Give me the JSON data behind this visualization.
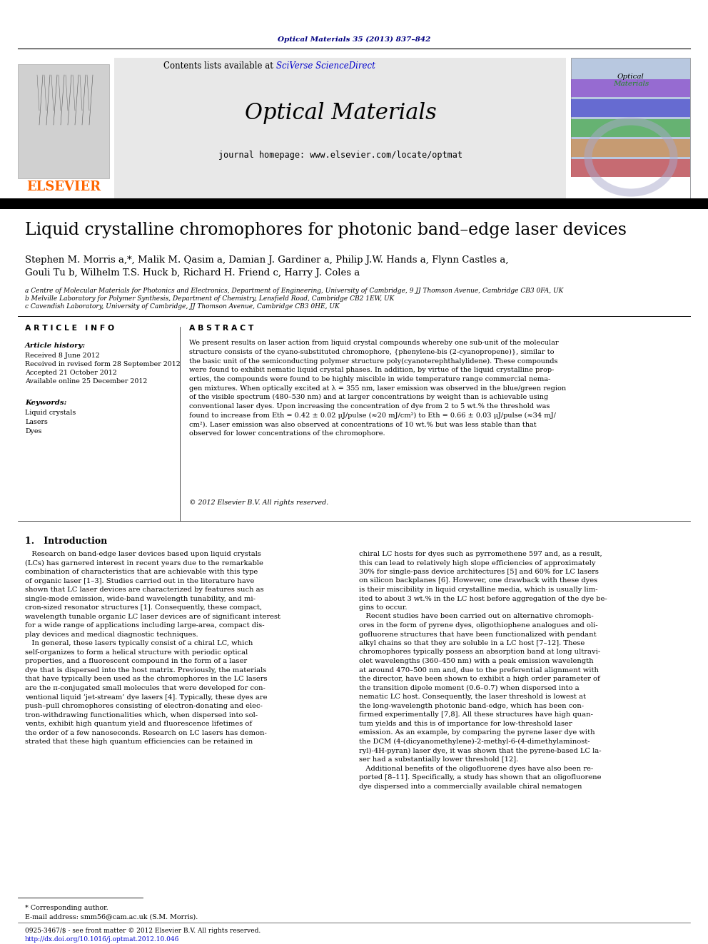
{
  "page_bg": "#ffffff",
  "header_journal_line": "Optical Materials 35 (2013) 837–842",
  "header_journal_color": "#000080",
  "journal_name": "Optical Materials",
  "journal_homepage": "journal homepage: www.elsevier.com/locate/optmat",
  "contents_text": "Contents lists available at ",
  "sciverse_text": "SciVerse ScienceDirect",
  "elsevier_color": "#FF6600",
  "elsevier_text": "ELSEVIER",
  "paper_title": "Liquid crystalline chromophores for photonic band–edge laser devices",
  "authors_line1": "Stephen M. Morris a,*, Malik M. Qasim a, Damian J. Gardiner a, Philip J.W. Hands a, Flynn Castles a,",
  "authors_line2": "Gouli Tu b, Wilhelm T.S. Huck b, Richard H. Friend c, Harry J. Coles a",
  "affil_a": "a Centre of Molecular Materials for Photonics and Electronics, Department of Engineering, University of Cambridge, 9 JJ Thomson Avenue, Cambridge CB3 0FA, UK",
  "affil_b": "b Melville Laboratory for Polymer Synthesis, Department of Chemistry, Lensfield Road, Cambridge CB2 1EW, UK",
  "affil_c": "c Cavendish Laboratory, University of Cambridge, JJ Thomson Avenue, Cambridge CB3 0HE, UK",
  "article_info_title": "A R T I C L E   I N F O",
  "abstract_title": "A B S T R A C T",
  "article_history_title": "Article history:",
  "received": "Received 8 June 2012",
  "revised": "Received in revised form 28 September 2012",
  "accepted": "Accepted 21 October 2012",
  "available": "Available online 25 December 2012",
  "keywords_title": "Keywords:",
  "keywords": "Liquid crystals\nLasers\nDyes",
  "abstract_text": "We present results on laser action from liquid crystal compounds whereby one sub-unit of the molecular\nstructure consists of the cyano-substituted chromophore, {phenylene-bis (2-cyanopropene)}, similar to\nthe basic unit of the semiconducting polymer structure poly(cyanoterephthalylidene). These compounds\nwere found to exhibit nematic liquid crystal phases. In addition, by virtue of the liquid crystalline prop-\nerties, the compounds were found to be highly miscible in wide temperature range commercial nema-\ngen mixtures. When optically excited at λ = 355 nm, laser emission was observed in the blue/green region\nof the visible spectrum (480–530 nm) and at larger concentrations by weight than is achievable using\nconventional laser dyes. Upon increasing the concentration of dye from 2 to 5 wt.% the threshold was\nfound to increase from Eth = 0.42 ± 0.02 μJ/pulse (≈20 mJ/cm²) to Eth = 0.66 ± 0.03 μJ/pulse (≈34 mJ/\ncm²). Laser emission was also observed at concentrations of 10 wt.% but was less stable than that\nobserved for lower concentrations of the chromophore.",
  "copyright": "© 2012 Elsevier B.V. All rights reserved.",
  "intro_title": "1.   Introduction",
  "intro_col1": "   Research on band-edge laser devices based upon liquid crystals\n(LCs) has garnered interest in recent years due to the remarkable\ncombination of characteristics that are achievable with this type\nof organic laser [1–3]. Studies carried out in the literature have\nshown that LC laser devices are characterized by features such as\nsingle-mode emission, wide-band wavelength tunability, and mi-\ncron-sized resonator structures [1]. Consequently, these compact,\nwavelength tunable organic LC laser devices are of significant interest\nfor a wide range of applications including large-area, compact dis-\nplay devices and medical diagnostic techniques.\n   In general, these lasers typically consist of a chiral LC, which\nself-organizes to form a helical structure with periodic optical\nproperties, and a fluorescent compound in the form of a laser\ndye that is dispersed into the host matrix. Previously, the materials\nthat have typically been used as the chromophores in the LC lasers\nare the π-conjugated small molecules that were developed for con-\nventional liquid ‘jet-stream’ dye lasers [4]. Typically, these dyes are\npush–pull chromophores consisting of electron-donating and elec-\ntron-withdrawing functionalities which, when dispersed into sol-\nvents, exhibit high quantum yield and fluorescence lifetimes of\nthe order of a few nanoseconds. Research on LC lasers has demon-\nstrated that these high quantum efficiencies can be retained in",
  "intro_col2": "chiral LC hosts for dyes such as pyrromethene 597 and, as a result,\nthis can lead to relatively high slope efficiencies of approximately\n30% for single-pass device architectures [5] and 60% for LC lasers\non silicon backplanes [6]. However, one drawback with these dyes\nis their miscibility in liquid crystalline media, which is usually lim-\nited to about 3 wt.% in the LC host before aggregation of the dye be-\ngins to occur.\n   Recent studies have been carried out on alternative chromoph-\nores in the form of pyrene dyes, oligothiophene analogues and oli-\ngofluorene structures that have been functionalized with pendant\nalkyl chains so that they are soluble in a LC host [7–12]. These\nchromophores typically possess an absorption band at long ultravi-\nolet wavelengths (360–450 nm) with a peak emission wavelength\nat around 470–500 nm and, due to the preferential alignment with\nthe director, have been shown to exhibit a high order parameter of\nthe transition dipole moment (0.6–0.7) when dispersed into a\nnematic LC host. Consequently, the laser threshold is lowest at\nthe long-wavelength photonic band-edge, which has been con-\nfirmed experimentally [7,8]. All these structures have high quan-\ntum yields and this is of importance for low-threshold laser\nemission. As an example, by comparing the pyrene laser dye with\nthe DCM (4-(dicyanomethylene)-2-methyl-6-(4-dimethylaminost-\nryl)-4H-pyran) laser dye, it was shown that the pyrene-based LC la-\nser had a substantially lower threshold [12].\n   Additional benefits of the oligofluorene dyes have also been re-\nported [8–11]. Specifically, a study has shown that an oligofluorene\ndye dispersed into a commercially available chiral nematogen",
  "footnote_star": "* Corresponding author.",
  "footnote_email": "E-mail address: smm56@cam.ac.uk (S.M. Morris).",
  "issn_line": "0925-3467/$ - see front matter © 2012 Elsevier B.V. All rights reserved.",
  "doi_line": "http://dx.doi.org/10.1016/j.optmat.2012.10.046",
  "header_gray_bg": "#e8e8e8",
  "black_bar_color": "#000000",
  "sciverse_color": "#0000cc",
  "link_color": "#0000cc"
}
